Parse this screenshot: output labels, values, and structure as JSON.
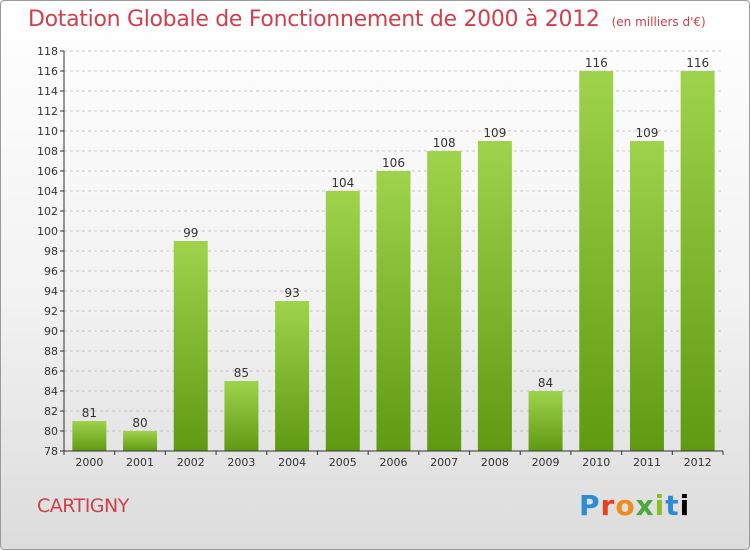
{
  "header": {
    "title": "Dotation Globale de Fonctionnement de 2000 à 2012",
    "unit": "(en milliers d'€)"
  },
  "footer": {
    "place": "CARTIGNY",
    "brand": "Proxiti",
    "brand_letters": [
      "P",
      "r",
      "o",
      "x",
      "i",
      "t",
      "i"
    ]
  },
  "colors": {
    "title": "#d0404a",
    "bar_top": "#9fd34c",
    "bar_bottom": "#5f9a12",
    "axis": "#333333",
    "grid": "#999999"
  },
  "chart_data": {
    "type": "bar",
    "title": "Dotation Globale de Fonctionnement de 2000 à 2012",
    "subtitle": "(en milliers d'€)",
    "xlabel": "",
    "ylabel": "",
    "categories": [
      "2000",
      "2001",
      "2002",
      "2003",
      "2004",
      "2005",
      "2006",
      "2007",
      "2008",
      "2009",
      "2010",
      "2011",
      "2012"
    ],
    "values": [
      81,
      80,
      99,
      85,
      93,
      104,
      106,
      108,
      109,
      84,
      116,
      109,
      116
    ],
    "data_labels": [
      "81",
      "80",
      "99",
      "85",
      "93",
      "104",
      "106",
      "108",
      "109",
      "84",
      "116",
      "109",
      "116"
    ],
    "ylim": [
      78,
      118
    ],
    "yticks": [
      78,
      80,
      82,
      84,
      86,
      88,
      90,
      92,
      94,
      96,
      98,
      100,
      102,
      104,
      106,
      108,
      110,
      112,
      114,
      116,
      118
    ],
    "grid": "horizontal dashed",
    "legend": "none"
  }
}
